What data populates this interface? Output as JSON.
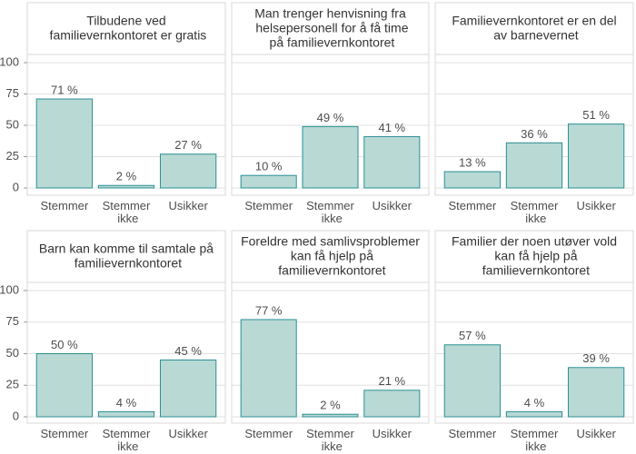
{
  "chart_data": [
    {
      "type": "bar",
      "title": "Tilbudene ved familievernkontoret er gratis",
      "categories": [
        "Stemmer",
        "Stemmer ikke",
        "Usikker"
      ],
      "values": [
        71,
        2,
        27
      ],
      "value_labels": [
        "71 %",
        "2 %",
        "27 %"
      ],
      "color": "#b9d9d4",
      "ylim": [
        0,
        100
      ],
      "yticks": [
        0,
        25,
        50,
        75,
        100
      ],
      "grid": true
    },
    {
      "type": "bar",
      "title": "Man trenger henvisning fra helsepersonell for å få time på familievernkontoret",
      "categories": [
        "Stemmer",
        "Stemmer ikke",
        "Usikker"
      ],
      "values": [
        10,
        49,
        41
      ],
      "value_labels": [
        "10 %",
        "49 %",
        "41 %"
      ],
      "color": "#b9d9d4",
      "ylim": [
        0,
        100
      ],
      "yticks": [
        0,
        25,
        50,
        75,
        100
      ],
      "grid": true
    },
    {
      "type": "bar",
      "title": "Familievernkontoret er en del av barnevernet",
      "categories": [
        "Stemmer",
        "Stemmer ikke",
        "Usikker"
      ],
      "values": [
        13,
        36,
        51
      ],
      "value_labels": [
        "13 %",
        "36 %",
        "51 %"
      ],
      "color": "#b9d9d4",
      "ylim": [
        0,
        100
      ],
      "yticks": [
        0,
        25,
        50,
        75,
        100
      ],
      "grid": true
    },
    {
      "type": "bar",
      "title": "Barn kan komme til samtale på familievernkontoret",
      "categories": [
        "Stemmer",
        "Stemmer ikke",
        "Usikker"
      ],
      "values": [
        50,
        4,
        45
      ],
      "value_labels": [
        "50 %",
        "4 %",
        "45 %"
      ],
      "color": "#b9d9d4",
      "ylim": [
        0,
        100
      ],
      "yticks": [
        0,
        25,
        50,
        75,
        100
      ],
      "grid": true
    },
    {
      "type": "bar",
      "title": "Foreldre med samlivsproblemer kan få hjelp på familievernkontoret",
      "categories": [
        "Stemmer",
        "Stemmer ikke",
        "Usikker"
      ],
      "values": [
        77,
        2,
        21
      ],
      "value_labels": [
        "77 %",
        "2 %",
        "21 %"
      ],
      "color": "#b9d9d4",
      "ylim": [
        0,
        100
      ],
      "yticks": [
        0,
        25,
        50,
        75,
        100
      ],
      "grid": true
    },
    {
      "type": "bar",
      "title": "Familier der noen utøver vold kan få hjelp på familievernkontoret",
      "categories": [
        "Stemmer",
        "Stemmer ikke",
        "Usikker"
      ],
      "values": [
        57,
        4,
        39
      ],
      "value_labels": [
        "57 %",
        "4 %",
        "39 %"
      ],
      "color": "#b9d9d4",
      "ylim": [
        0,
        100
      ],
      "yticks": [
        0,
        25,
        50,
        75,
        100
      ],
      "grid": true
    }
  ]
}
